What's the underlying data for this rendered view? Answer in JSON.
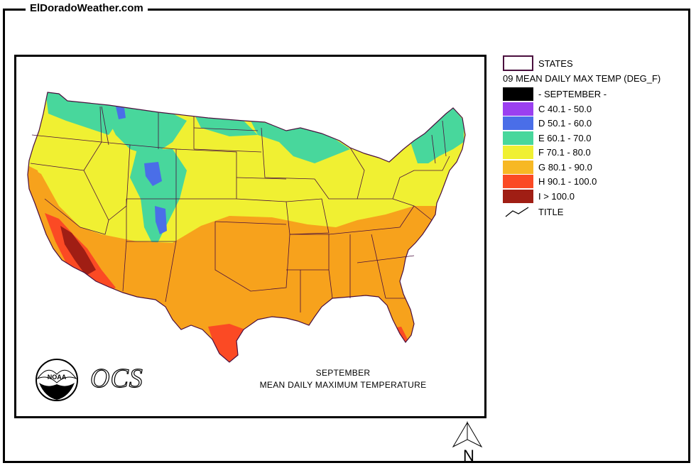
{
  "site": {
    "title": "ElDoradoWeather.com"
  },
  "map": {
    "caption_line1": "SEPTEMBER",
    "caption_line2": "MEAN DAILY MAXIMUM TEMPERATURE",
    "logo_noaa_text": "NOAA",
    "logo_ocs_text": "OCS"
  },
  "legend": {
    "states_label": "STATES",
    "layer_title": "09 MEAN DAILY MAX TEMP (DEG_F)",
    "classes": [
      {
        "label": "- SEPTEMBER -",
        "color": "#000000"
      },
      {
        "label": "C 40.1 - 50.0",
        "color": "#9b40f0"
      },
      {
        "label": "D 50.1 - 60.0",
        "color": "#4a6ee8"
      },
      {
        "label": "E 60.1 - 70.0",
        "color": "#48d79c"
      },
      {
        "label": "F 70.1 - 80.0",
        "color": "#f0f032"
      },
      {
        "label": "G 80.1 - 90.0",
        "color": "#f7b824"
      },
      {
        "label": "H 90.1 - 100.0",
        "color": "#fb4a24"
      },
      {
        "label": "I > 100.0",
        "color": "#a01e14"
      }
    ],
    "title_symbol_label": "TITLE"
  },
  "north_arrow": {
    "label": "N"
  },
  "colors": {
    "states_border": "#4a0f3e",
    "cool": "#48d79c",
    "mild": "#f0f032",
    "warm": "#f7a21c",
    "hot": "#fb4a24",
    "very_hot": "#a01e14",
    "cold": "#4a6ee8"
  }
}
